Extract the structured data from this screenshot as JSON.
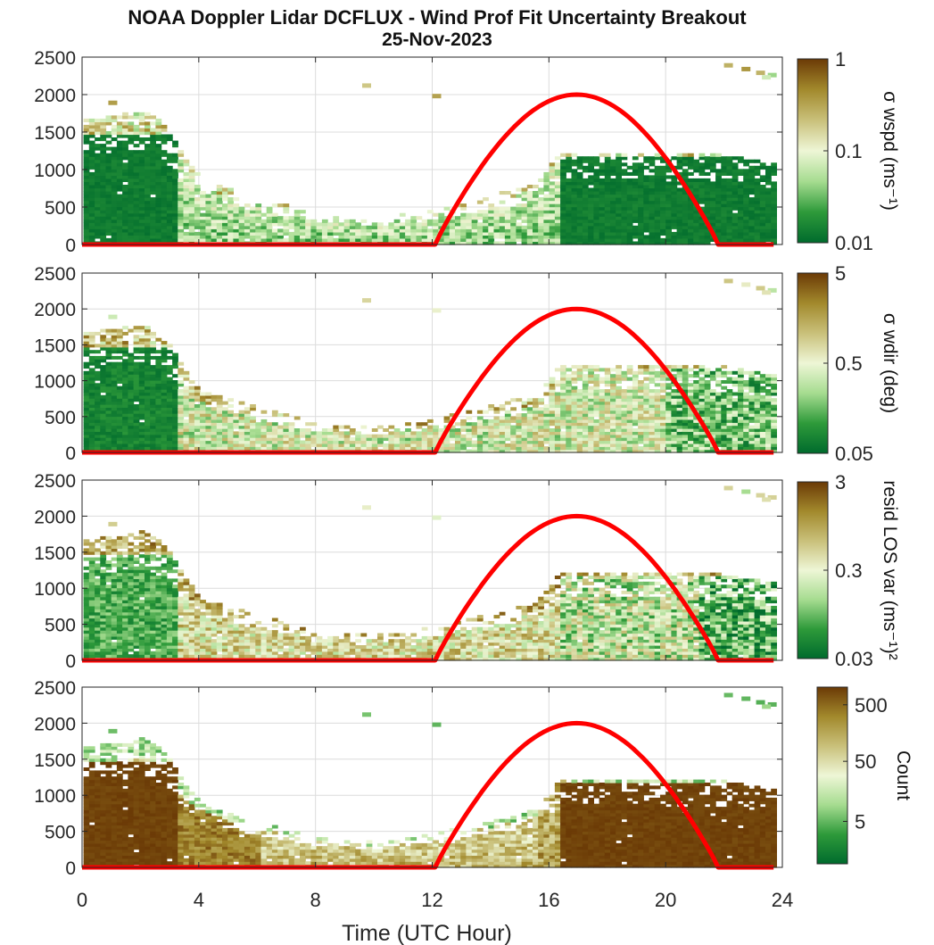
{
  "chart_data": {
    "title": "NOAA Doppler Lidar DCFLUX - Wind Prof Fit Uncertainty Breakout",
    "subtitle": "25-Nov-2023",
    "type": "heatmap",
    "xlabel": "Time (UTC Hour)",
    "xlim": [
      0,
      24
    ],
    "xticks": [
      "0",
      "4",
      "8",
      "12",
      "16",
      "20",
      "24"
    ],
    "overlay_line": {
      "color": "#ff0000",
      "shape": "arc",
      "points_x": [
        0,
        12.1,
        14,
        16.9,
        19.5,
        21.8,
        24
      ],
      "points_y": [
        0,
        0,
        1280,
        2000,
        1500,
        0,
        0
      ]
    },
    "panels": [
      {
        "ylim": [
          0,
          2500
        ],
        "yticks": [
          "0",
          "500",
          "1000",
          "1500",
          "2000",
          "2500"
        ],
        "colorbar_label": "σ wspd (ms⁻¹)",
        "colorbar_ticks": [
          "1",
          "0.1",
          "0.01"
        ],
        "colorbar_scale": "log",
        "colormap": [
          "#006b2d",
          "#2e9a3a",
          "#a6dc90",
          "#eef6d6",
          "#c9c07a",
          "#a2892c",
          "#6b3a06"
        ]
      },
      {
        "ylim": [
          0,
          2500
        ],
        "yticks": [
          "0",
          "500",
          "1000",
          "1500",
          "2000",
          "2500"
        ],
        "colorbar_label": "σ wdir (deg)",
        "colorbar_ticks": [
          "5",
          "0.5",
          "0.05"
        ],
        "colorbar_scale": "log",
        "colormap": [
          "#006b2d",
          "#2e9a3a",
          "#a6dc90",
          "#eef6d6",
          "#c9c07a",
          "#a2892c",
          "#6b3a06"
        ]
      },
      {
        "ylim": [
          0,
          2500
        ],
        "yticks": [
          "0",
          "500",
          "1000",
          "1500",
          "2000",
          "2500"
        ],
        "colorbar_label": "resid LOS var (ms⁻¹)²",
        "colorbar_ticks": [
          "3",
          "0.3",
          "0.03"
        ],
        "colorbar_scale": "log",
        "colormap": [
          "#006b2d",
          "#2e9a3a",
          "#a6dc90",
          "#eef6d6",
          "#c9c07a",
          "#a2892c",
          "#6b3a06"
        ]
      },
      {
        "ylim": [
          0,
          2500
        ],
        "yticks": [
          "0",
          "500",
          "1000",
          "1500",
          "2000",
          "2500"
        ],
        "colorbar_label": "Count",
        "colorbar_ticks": [
          "500",
          "50",
          "5"
        ],
        "colorbar_scale": "log",
        "colormap": [
          "#006b2d",
          "#2e9a3a",
          "#a6dc90",
          "#eef6d6",
          "#c9c07a",
          "#a2892c",
          "#6b3a06"
        ]
      }
    ],
    "data_extent": [
      {
        "x": 0,
        "top": 1650
      },
      {
        "x": 1,
        "top": 1700
      },
      {
        "x": 2,
        "top": 1780
      },
      {
        "x": 2.7,
        "top": 1600
      },
      {
        "x": 3.5,
        "top": 1100
      },
      {
        "x": 4,
        "top": 850
      },
      {
        "x": 6,
        "top": 600
      },
      {
        "x": 8,
        "top": 400
      },
      {
        "x": 10,
        "top": 330
      },
      {
        "x": 12,
        "top": 450
      },
      {
        "x": 14,
        "top": 650
      },
      {
        "x": 15.5,
        "top": 800
      },
      {
        "x": 16.3,
        "top": 1200
      },
      {
        "x": 20,
        "top": 1200
      },
      {
        "x": 22,
        "top": 1180
      },
      {
        "x": 23.7,
        "top": 1050
      }
    ]
  }
}
